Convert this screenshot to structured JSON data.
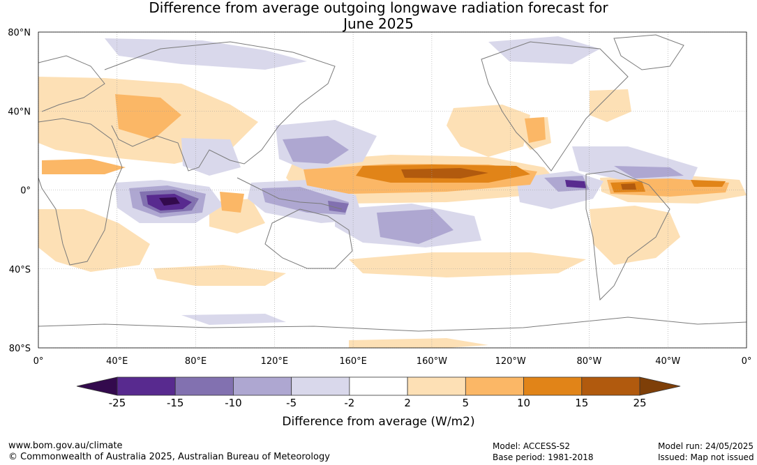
{
  "title": {
    "line1": "Difference from average outgoing longwave radiation forecast for",
    "line2": "June 2025"
  },
  "map": {
    "lat_labels": [
      "80°N",
      "40°N",
      "0°",
      "40°S",
      "80°S"
    ],
    "lon_labels": [
      "0°",
      "40°E",
      "80°E",
      "120°E",
      "160°E",
      "160°W",
      "120°W",
      "80°W",
      "40°W",
      "0°"
    ],
    "colors": {
      "ocean": "#ffffff",
      "land_outline": "#7a7a7a",
      "grid": "#9a9a9a"
    },
    "anomaly_regions": [
      {
        "name": "indian-ocean-deficit",
        "value": -25
      },
      {
        "name": "central-pacific-excess",
        "value": 15
      },
      {
        "name": "amazon-excess",
        "value": 15
      },
      {
        "name": "maritime-continent-deficit",
        "value": -15
      }
    ]
  },
  "colorbar": {
    "ticks": [
      "-25",
      "-15",
      "-10",
      "-5",
      "-2",
      "2",
      "5",
      "10",
      "15",
      "25"
    ],
    "bins": [
      {
        "from": -25,
        "to": -15,
        "color": "#582a8f"
      },
      {
        "from": -15,
        "to": -10,
        "color": "#8271b0"
      },
      {
        "from": -10,
        "to": -5,
        "color": "#aea7d1"
      },
      {
        "from": -5,
        "to": -2,
        "color": "#d9d8eb"
      },
      {
        "from": -2,
        "to": 2,
        "color": "#ffffff"
      },
      {
        "from": 2,
        "to": 5,
        "color": "#fde0b5"
      },
      {
        "from": 5,
        "to": 10,
        "color": "#fbb766"
      },
      {
        "from": 10,
        "to": 15,
        "color": "#e18418"
      },
      {
        "from": 15,
        "to": 25,
        "color": "#b15a0e"
      }
    ],
    "low_extend_color": "#330a4d",
    "high_extend_color": "#7e3f08",
    "label": "Difference from average (W/m2)"
  },
  "footer": {
    "website": "www.bom.gov.au/climate",
    "copyright": "© Commonwealth of Australia 2025, Australian Bureau of Meteorology",
    "model": "Model: ACCESS-S2",
    "base_period": "Base period: 1981-2018",
    "model_run": "Model run: 24/05/2025",
    "issued": "Issued: Map not issued"
  }
}
